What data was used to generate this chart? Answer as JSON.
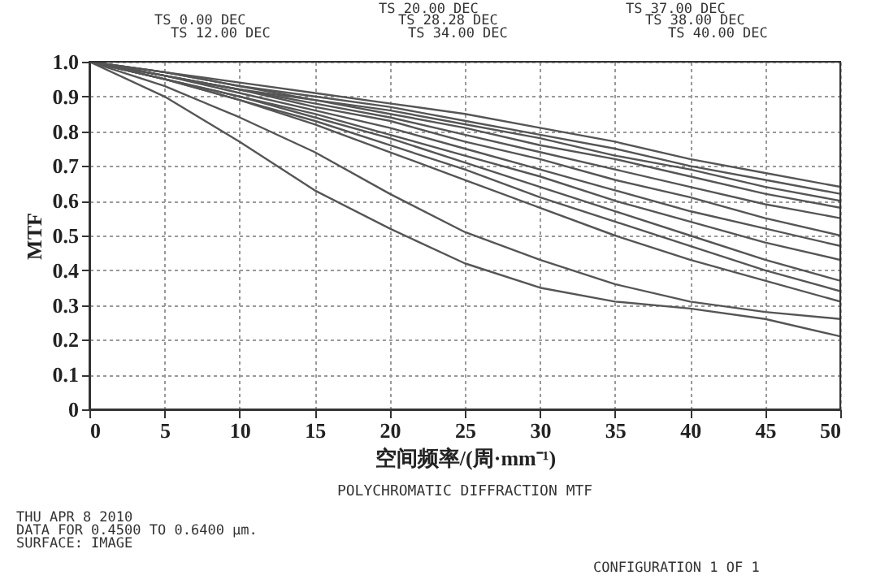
{
  "chart_data": {
    "type": "line",
    "subtitle": "POLYCHROMATIC DIFFRACTION MTF",
    "xlabel": "空间频率/(周·mm⁻¹)",
    "ylabel": "MTF",
    "x": [
      0,
      5,
      10,
      15,
      20,
      25,
      30,
      35,
      40,
      45,
      50
    ],
    "series": [
      {
        "color": "#555555",
        "values": [
          1,
          0.97,
          0.94,
          0.91,
          0.88,
          0.85,
          0.81,
          0.77,
          0.72,
          0.68,
          0.64
        ]
      },
      {
        "color": "#555555",
        "values": [
          1,
          0.97,
          0.93,
          0.9,
          0.87,
          0.83,
          0.79,
          0.75,
          0.7,
          0.66,
          0.62
        ]
      },
      {
        "color": "#555555",
        "values": [
          1,
          0.97,
          0.93,
          0.89,
          0.86,
          0.82,
          0.78,
          0.73,
          0.69,
          0.64,
          0.6
        ]
      },
      {
        "color": "#555555",
        "values": [
          1,
          0.96,
          0.92,
          0.89,
          0.85,
          0.81,
          0.76,
          0.72,
          0.67,
          0.62,
          0.58
        ]
      },
      {
        "color": "#555555",
        "values": [
          1,
          0.96,
          0.92,
          0.88,
          0.84,
          0.79,
          0.74,
          0.69,
          0.64,
          0.59,
          0.55
        ]
      },
      {
        "color": "#555555",
        "values": [
          1,
          0.96,
          0.92,
          0.87,
          0.83,
          0.77,
          0.72,
          0.66,
          0.61,
          0.55,
          0.5
        ]
      },
      {
        "color": "#555555",
        "values": [
          1,
          0.96,
          0.91,
          0.86,
          0.81,
          0.75,
          0.69,
          0.63,
          0.57,
          0.52,
          0.47
        ]
      },
      {
        "color": "#555555",
        "values": [
          1,
          0.95,
          0.9,
          0.85,
          0.79,
          0.73,
          0.67,
          0.6,
          0.54,
          0.48,
          0.43
        ]
      },
      {
        "color": "#555555",
        "values": [
          1,
          0.95,
          0.9,
          0.84,
          0.78,
          0.71,
          0.64,
          0.57,
          0.5,
          0.43,
          0.37
        ]
      },
      {
        "color": "#555555",
        "values": [
          1,
          0.95,
          0.89,
          0.83,
          0.76,
          0.69,
          0.61,
          0.54,
          0.47,
          0.4,
          0.34
        ]
      },
      {
        "color": "#555555",
        "values": [
          1,
          0.95,
          0.89,
          0.82,
          0.74,
          0.66,
          0.58,
          0.5,
          0.43,
          0.37,
          0.31
        ]
      },
      {
        "color": "#555555",
        "values": [
          1,
          0.93,
          0.84,
          0.74,
          0.62,
          0.51,
          0.43,
          0.36,
          0.31,
          0.28,
          0.26
        ]
      },
      {
        "color": "#555555",
        "values": [
          1,
          0.9,
          0.77,
          0.63,
          0.52,
          0.42,
          0.35,
          0.31,
          0.29,
          0.26,
          0.21
        ]
      }
    ],
    "xlim": [
      0,
      50
    ],
    "xticks": [
      0,
      5,
      10,
      15,
      20,
      25,
      30,
      35,
      40,
      45,
      50
    ],
    "ylim": [
      0,
      1
    ],
    "yticks": [
      0,
      0.1,
      0.2,
      0.3,
      0.4,
      0.5,
      0.6,
      0.7,
      0.8,
      0.9,
      {
        "value": 1,
        "label": "1.0"
      }
    ],
    "grid": true,
    "legend": false,
    "annotations": [
      "TS 0.00 DEC",
      "TS 12.00 DEC",
      "TS 20.00 DEC",
      "TS 28.28 DEC",
      "TS 34.00 DEC",
      "TS 37.00 DEC",
      "TS 38.00 DEC",
      "TS 40.00 DEC",
      "THU APR 8 2010",
      "DATA FOR 0.4500 TO 0.6400 μm.",
      "SURFACE: IMAGE",
      "CONFIGURATION 1 OF 1"
    ]
  }
}
